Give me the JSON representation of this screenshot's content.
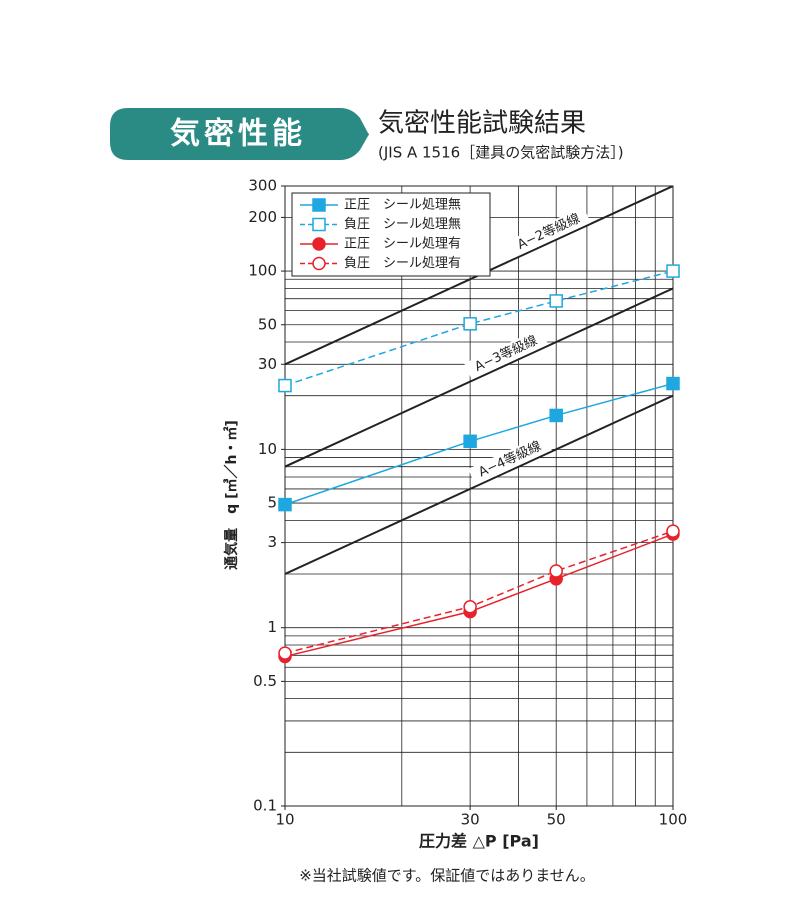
{
  "badge": "気密性能",
  "header": {
    "title": "気密性能試験結果",
    "subtitle": "(JIS A 1516［建具の気密試験方法］)"
  },
  "chart_data": {
    "type": "line",
    "xscale": "log",
    "yscale": "log",
    "xlabel": "圧力差 △P [Pa]",
    "ylabel": "通気量　q [㎥／h・㎡]",
    "x": [
      10,
      30,
      50,
      100
    ],
    "xlim": [
      10,
      100
    ],
    "ylim": [
      0.1,
      300
    ],
    "xticks": [
      10,
      30,
      50,
      100
    ],
    "yticks": [
      0.1,
      0.5,
      1,
      3,
      5,
      10,
      30,
      50,
      100,
      200,
      300
    ],
    "xgrid": [
      10,
      20,
      30,
      40,
      50,
      60,
      70,
      80,
      90,
      100
    ],
    "ygrid": [
      0.1,
      0.2,
      0.3,
      0.4,
      0.5,
      0.6,
      0.7,
      0.8,
      0.9,
      1,
      2,
      3,
      4,
      5,
      6,
      7,
      8,
      9,
      10,
      20,
      30,
      40,
      50,
      60,
      70,
      80,
      90,
      100,
      200,
      300
    ],
    "legend": "top-left",
    "series": [
      {
        "name": "正圧　シール処理無",
        "color": "#1ea7e1",
        "dashed": false,
        "marker": "square",
        "filled": true,
        "values": [
          4.9,
          11.1,
          15.5,
          23.4
        ]
      },
      {
        "name": "負圧　シール処理無",
        "color": "#1ea7e1",
        "dashed": true,
        "marker": "square",
        "filled": false,
        "values": [
          22.8,
          50.6,
          68,
          100
        ]
      },
      {
        "name": "正圧　シール処理有",
        "color": "#e8222b",
        "dashed": false,
        "marker": "circle",
        "filled": true,
        "values": [
          0.69,
          1.23,
          1.88,
          3.35
        ]
      },
      {
        "name": "負圧　シール処理有",
        "color": "#e8222b",
        "dashed": true,
        "marker": "circle",
        "filled": false,
        "values": [
          0.72,
          1.31,
          2.08,
          3.48
        ]
      }
    ],
    "reference_lines": [
      {
        "label": "A−2等級線",
        "x": [
          10,
          100
        ],
        "values": [
          30,
          300
        ]
      },
      {
        "label": "A−3等級線",
        "x": [
          10,
          100
        ],
        "values": [
          8,
          80
        ]
      },
      {
        "label": "A−4等級線",
        "x": [
          10,
          100
        ],
        "values": [
          2,
          20
        ]
      }
    ]
  },
  "footnote": "※当社試験値です。保証値ではありません。"
}
